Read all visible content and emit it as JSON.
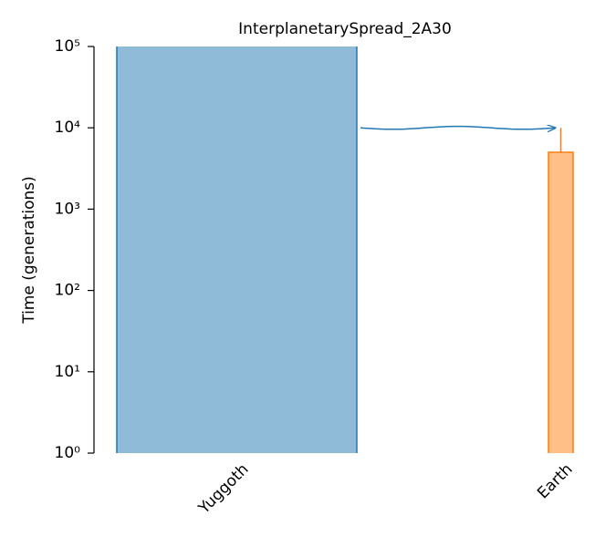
{
  "chart_data": {
    "type": "demes",
    "title": "InterplanetarySpread_2A30",
    "y_label": "Time (generations)",
    "log_scale": true,
    "ylim": [
      1,
      100000
    ],
    "yticks": [
      {
        "value": 1,
        "label": "10⁰"
      },
      {
        "value": 10,
        "label": "10¹"
      },
      {
        "value": 100,
        "label": "10²"
      },
      {
        "value": 1000,
        "label": "10³"
      },
      {
        "value": 10000,
        "label": "10⁴"
      },
      {
        "value": 100000,
        "label": "10⁵"
      }
    ],
    "categories": [
      "Yuggoth",
      "Earth"
    ],
    "start_times": [
      100000,
      5000
    ],
    "colors": [
      "#1f77b4",
      "#ff7f0e"
    ],
    "pulse_time": 10000
  }
}
